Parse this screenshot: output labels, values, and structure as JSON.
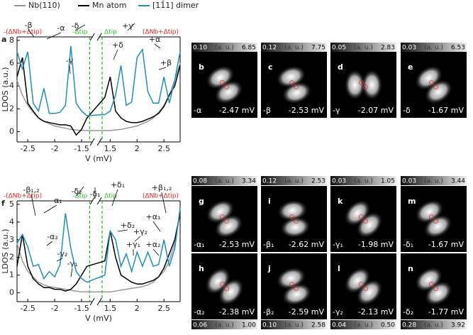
{
  "chart_data": [
    {
      "type": "line",
      "label": "a",
      "xlabel": "V (mV)",
      "ylabel": "LDOS (a.u.)",
      "edge_labels": [
        "-(ΔNb+Δtip)",
        "(ΔNb+Δtip)"
      ],
      "reference_lines": [
        {
          "x": -1.35,
          "label": "-Δtip"
        },
        {
          "x": 1.35,
          "label": "Δtip"
        }
      ],
      "xsegments": [
        [
          -2.7,
          -1.3
        ],
        [
          1.3,
          2.8
        ]
      ],
      "xticks": [
        -2.5,
        -2,
        -1.5,
        1.5,
        2,
        2.5
      ],
      "ylim": [
        -0.9,
        8.3
      ],
      "yticks": [
        0,
        2,
        4,
        6,
        8
      ],
      "x": [
        -2.7,
        -2.6,
        -2.5,
        -2.4,
        -2.3,
        -2.2,
        -2.1,
        -2.0,
        -1.9,
        -1.8,
        -1.7,
        -1.6,
        -1.5,
        -1.4,
        1.4,
        1.5,
        1.6,
        1.7,
        1.8,
        1.9,
        2.0,
        2.1,
        2.2,
        2.3,
        2.4,
        2.5,
        2.6,
        2.7,
        2.8
      ],
      "series": [
        {
          "name": "Nb(110)",
          "color": "#999999",
          "values": [
            4.5,
            3.2,
            2.3,
            1.7,
            1.2,
            0.9,
            0.7,
            0.5,
            0.4,
            0.3,
            0.2,
            0.15,
            0.1,
            0.1,
            0.1,
            0.1,
            0.15,
            0.2,
            0.3,
            0.4,
            0.5,
            0.7,
            0.9,
            1.2,
            1.7,
            2.3,
            3.2,
            4.5,
            6
          ]
        },
        {
          "name": "Mn atom",
          "color": "#000000",
          "values": [
            4.8,
            6.5,
            2.5,
            1.8,
            1.2,
            0.9,
            0.8,
            0.7,
            0.6,
            0.6,
            0.5,
            -0.3,
            0.2,
            1.2,
            3.0,
            4.8,
            1.8,
            1.2,
            0.9,
            0.8,
            0.8,
            0.9,
            1.1,
            1.3,
            1.6,
            2.2,
            3.2,
            4.0,
            5.8
          ]
        },
        {
          "name": "[11̄1] dimer",
          "color": "#1f8fbf",
          "values": [
            7.0,
            5.5,
            7.0,
            2.5,
            1.8,
            3.8,
            1.6,
            1.6,
            1.7,
            2.3,
            7.5,
            2.5,
            1.8,
            1.4,
            1.5,
            1.8,
            3.2,
            5.8,
            2.3,
            2.6,
            6.5,
            7.2,
            3.5,
            2.5,
            2.5,
            4.8,
            2.5,
            4.5,
            7.0
          ]
        }
      ],
      "annotations": [
        "-β",
        "-α",
        "-δ",
        "-γ",
        "+δ",
        "+γ",
        "+α",
        "+β"
      ]
    },
    {
      "type": "line",
      "label": "f",
      "xlabel": "V (mV)",
      "ylabel": "LDOS (a.u.)",
      "edge_labels": [
        "-(ΔNb+Δtip)",
        "(ΔNb+Δtip)"
      ],
      "reference_lines": [
        {
          "x": -1.35,
          "label": "-Δtip"
        },
        {
          "x": 1.35,
          "label": "Δtip"
        }
      ],
      "xsegments": [
        [
          -2.7,
          -1.3
        ],
        [
          1.3,
          2.8
        ]
      ],
      "xticks": [
        -2.5,
        -2,
        -1.5,
        1.5,
        2,
        2.5
      ],
      "ylim": [
        -0.5,
        5.2
      ],
      "yticks": [
        0,
        1,
        2,
        3,
        4,
        5
      ],
      "x": [
        -2.7,
        -2.6,
        -2.5,
        -2.4,
        -2.3,
        -2.2,
        -2.1,
        -2.0,
        -1.9,
        -1.8,
        -1.7,
        -1.6,
        -1.5,
        -1.4,
        1.4,
        1.5,
        1.6,
        1.7,
        1.8,
        1.9,
        2.0,
        2.1,
        2.2,
        2.3,
        2.4,
        2.5,
        2.6,
        2.7,
        2.8
      ],
      "series": [
        {
          "color": "#999999",
          "values": [
            2.8,
            1.8,
            1.2,
            0.9,
            0.6,
            0.45,
            0.35,
            0.3,
            0.25,
            0.2,
            0.15,
            0.1,
            0.05,
            0.05,
            0.05,
            0.05,
            0.1,
            0.15,
            0.2,
            0.25,
            0.3,
            0.35,
            0.45,
            0.6,
            0.9,
            1.2,
            1.8,
            2.8,
            4.5
          ]
        },
        {
          "color": "#000000",
          "values": [
            1.5,
            3.3,
            1.5,
            0.8,
            0.5,
            0.3,
            0.3,
            0.2,
            0.2,
            0.1,
            0.2,
            0.5,
            1.0,
            1.5,
            1.8,
            3.5,
            2.0,
            1.0,
            0.8,
            0.6,
            0.5,
            0.5,
            0.6,
            0.7,
            0.9,
            1.4,
            2.2,
            3.0,
            4.5
          ]
        },
        {
          "color": "#1f8fbf",
          "values": [
            2.8,
            3.3,
            2.6,
            1.5,
            1.6,
            0.8,
            1.2,
            0.9,
            1.6,
            4.5,
            2.5,
            1.2,
            0.8,
            0.6,
            1.0,
            3.5,
            3.0,
            1.5,
            2.2,
            1.2,
            2.3,
            1.5,
            2.3,
            1.5,
            1.6,
            3.0,
            1.5,
            2.5,
            4.8
          ]
        }
      ],
      "annotations": [
        "-β₁,₂",
        "-α₁",
        "-δ₂",
        "-δ₁",
        "+δ₁",
        "+δ₂",
        "+β₁,₂",
        "-α₂",
        "+γ₂",
        "+α₁",
        "+γ₁",
        "+α₂",
        "-γ₂",
        "-γ₁"
      ]
    }
  ],
  "panels": [
    {
      "letter": "b",
      "min": "0.10",
      "unit": "(a. u.)",
      "max": "6.85",
      "state": "-α",
      "voltage": "-2.47 mV"
    },
    {
      "letter": "c",
      "min": "0.12",
      "unit": "(a. u.)",
      "max": "7.75",
      "state": "-β",
      "voltage": "-2.53 mV"
    },
    {
      "letter": "d",
      "min": "0.05",
      "unit": "(a. u.)",
      "max": "2.83",
      "state": "-γ",
      "voltage": "-2.07 mV"
    },
    {
      "letter": "e",
      "min": "0.03",
      "unit": "(a. u.)",
      "max": "6.53",
      "state": "-δ",
      "voltage": "-1.67 mV"
    },
    {
      "letter": "g",
      "min": "0.08",
      "unit": "(a. u.)",
      "max": "3.34",
      "state": "-α₁",
      "voltage": "-2.53 mV"
    },
    {
      "letter": "i",
      "min": "0.12",
      "unit": "(a. u.)",
      "max": "2.53",
      "state": "-β₁",
      "voltage": "-2.62 mV"
    },
    {
      "letter": "k",
      "min": "0.03",
      "unit": "(a. u.)",
      "max": "1.05",
      "state": "-γ₁",
      "voltage": "-1.98 mV"
    },
    {
      "letter": "m",
      "min": "0.03",
      "unit": "(a. u.)",
      "max": "3.44",
      "state": "-δ₁",
      "voltage": "-1.67 mV"
    },
    {
      "letter": "h",
      "min": "0.06",
      "unit": "(a. u.)",
      "max": "1.00",
      "state": "-α₂",
      "voltage": "-2.38 mV"
    },
    {
      "letter": "j",
      "min": "0.10",
      "unit": "(a. u.)",
      "max": "2.58",
      "state": "-β₂",
      "voltage": "-2.59 mV"
    },
    {
      "letter": "l",
      "min": "0.04",
      "unit": "(a. u.)",
      "max": "0.50",
      "state": "-γ₂",
      "voltage": "-2.13 mV"
    },
    {
      "letter": "n",
      "min": "0.28",
      "unit": "(a. u.)",
      "max": "3.92",
      "state": "-δ₂",
      "voltage": "-1.77 mV"
    }
  ]
}
